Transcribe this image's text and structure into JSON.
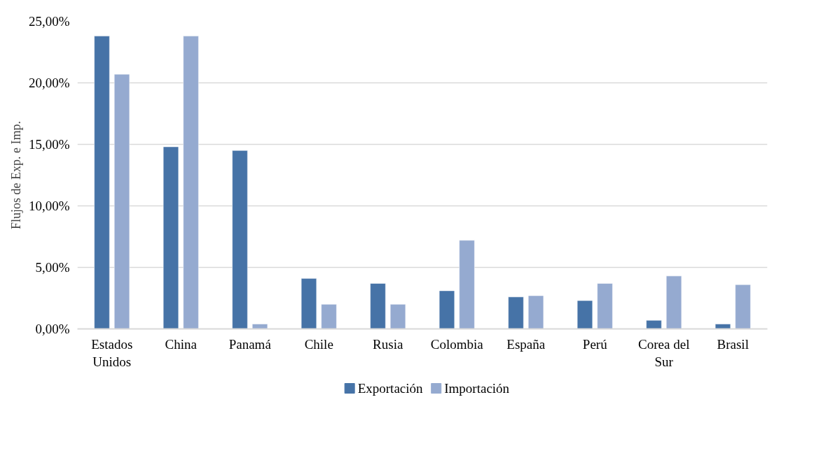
{
  "chart_data": {
    "type": "bar",
    "ylabel": "Flujos de Exp. e Imp.",
    "categories": [
      "Estados\nUnidos",
      "China",
      "Panamá",
      "Chile",
      "Rusia",
      "Colombia",
      "España",
      "Perú",
      "Corea del\nSur",
      "Brasil"
    ],
    "series": [
      {
        "name": "Exportación",
        "color": "#4673a7",
        "values": [
          23.8,
          14.8,
          14.5,
          4.1,
          3.7,
          3.1,
          2.6,
          2.3,
          0.7,
          0.4
        ]
      },
      {
        "name": "Importación",
        "color": "#95aad0",
        "values": [
          20.7,
          23.8,
          0.4,
          2.0,
          2.0,
          7.2,
          2.7,
          3.7,
          4.3,
          3.6
        ]
      }
    ],
    "ylim": [
      0,
      25
    ],
    "yticks": [
      {
        "value": 0,
        "label": "0,00%"
      },
      {
        "value": 5,
        "label": "5,00%"
      },
      {
        "value": 10,
        "label": "10,00%"
      },
      {
        "value": 15,
        "label": "15,00%"
      },
      {
        "value": 20,
        "label": "20,00%"
      },
      {
        "value": 25,
        "label": "25,00%"
      }
    ],
    "grid": "y",
    "legend": "bottom"
  }
}
